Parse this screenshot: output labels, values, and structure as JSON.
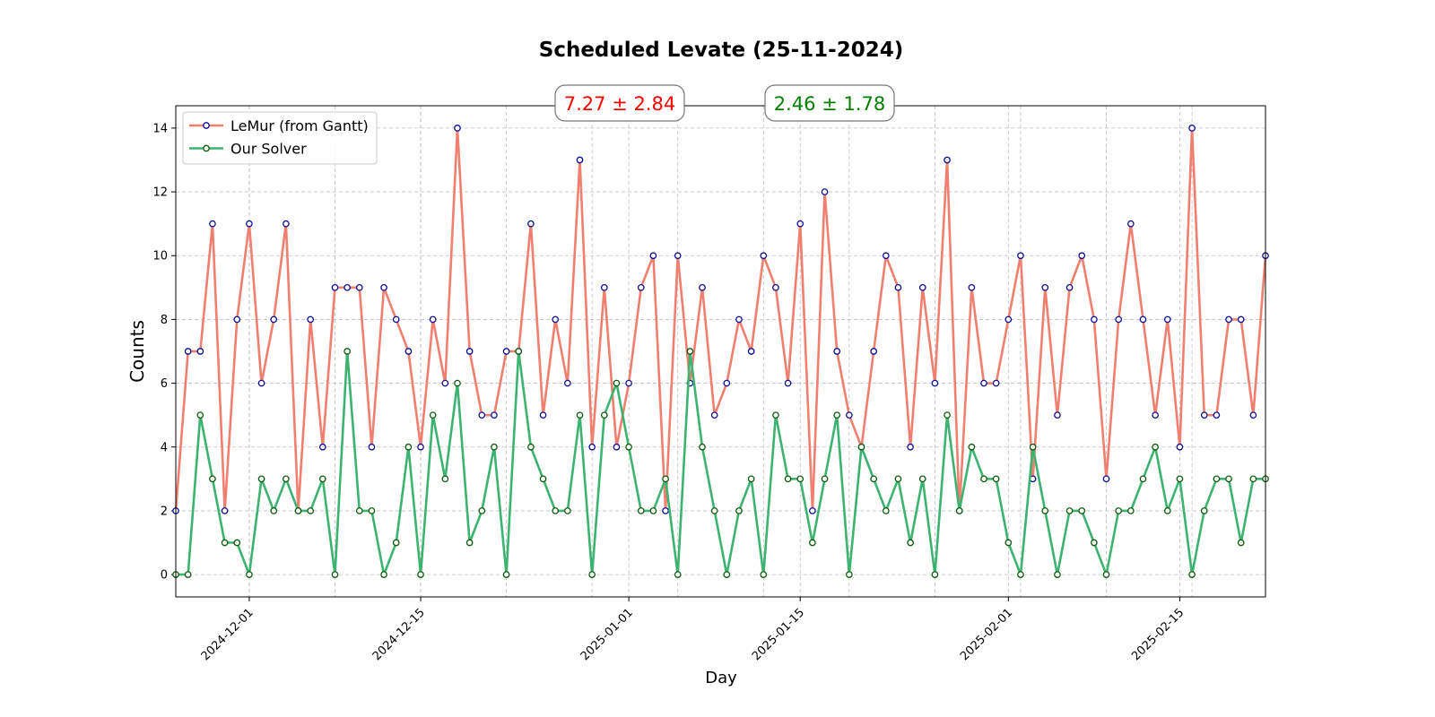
{
  "chart_data": {
    "type": "line",
    "title": "Scheduled Levate (25-11-2024)",
    "xlabel": "Day",
    "ylabel": "Counts",
    "x_start": "2024-11-25",
    "x_end": "2025-02-22",
    "ylim": [
      -0.7,
      14.7
    ],
    "y_ticks": [
      0,
      2,
      4,
      6,
      8,
      10,
      12,
      14
    ],
    "x_ticks": [
      {
        "date": "2024-12-01",
        "label": "2024-12-01"
      },
      {
        "date": "2024-12-15",
        "label": "2024-12-15"
      },
      {
        "date": "2025-01-01",
        "label": "2025-01-01"
      },
      {
        "date": "2025-01-15",
        "label": "2025-01-15"
      },
      {
        "date": "2025-02-01",
        "label": "2025-02-01"
      },
      {
        "date": "2025-02-15",
        "label": "2025-02-15"
      }
    ],
    "grid": true,
    "legend_position": "top-left",
    "series": [
      {
        "name": "LeMur (from Gantt)",
        "color": "#f07f6f",
        "marker_edge": "#0b0b9a",
        "values": [
          2,
          7,
          7,
          11,
          2,
          8,
          11,
          6,
          8,
          11,
          2,
          8,
          4,
          9,
          9,
          9,
          4,
          9,
          8,
          7,
          4,
          8,
          6,
          14,
          7,
          5,
          5,
          7,
          7,
          11,
          5,
          8,
          6,
          13,
          4,
          9,
          4,
          6,
          9,
          10,
          2,
          10,
          6,
          9,
          5,
          6,
          8,
          7,
          10,
          9,
          6,
          11,
          2,
          12,
          7,
          5,
          4,
          7,
          10,
          9,
          4,
          9,
          6,
          13,
          2,
          9,
          6,
          6,
          8,
          10,
          3,
          9,
          5,
          9,
          10,
          8,
          3,
          8,
          11,
          8,
          5,
          8,
          4,
          14,
          5,
          5,
          8,
          8,
          5,
          10
        ]
      },
      {
        "name": "Our Solver",
        "color": "#3cb371",
        "marker_edge": "#0b5a0b",
        "values": [
          0,
          0,
          5,
          3,
          1,
          1,
          0,
          3,
          2,
          3,
          2,
          2,
          3,
          0,
          7,
          2,
          2,
          0,
          1,
          4,
          0,
          5,
          3,
          6,
          1,
          2,
          4,
          0,
          7,
          4,
          3,
          2,
          2,
          5,
          0,
          5,
          6,
          4,
          2,
          2,
          3,
          0,
          7,
          4,
          2,
          0,
          2,
          3,
          0,
          5,
          3,
          3,
          1,
          3,
          5,
          0,
          4,
          3,
          2,
          3,
          1,
          3,
          0,
          5,
          2,
          4,
          3,
          3,
          1,
          0,
          4,
          2,
          0,
          2,
          2,
          1,
          0,
          2,
          2,
          3,
          4,
          2,
          3,
          0,
          2,
          3,
          3,
          1,
          3,
          3
        ]
      }
    ],
    "annotations": [
      {
        "text": "7.27 ± 2.84",
        "color": "#ff0000"
      },
      {
        "text": "2.46 ± 1.78",
        "color": "#008000"
      }
    ]
  }
}
